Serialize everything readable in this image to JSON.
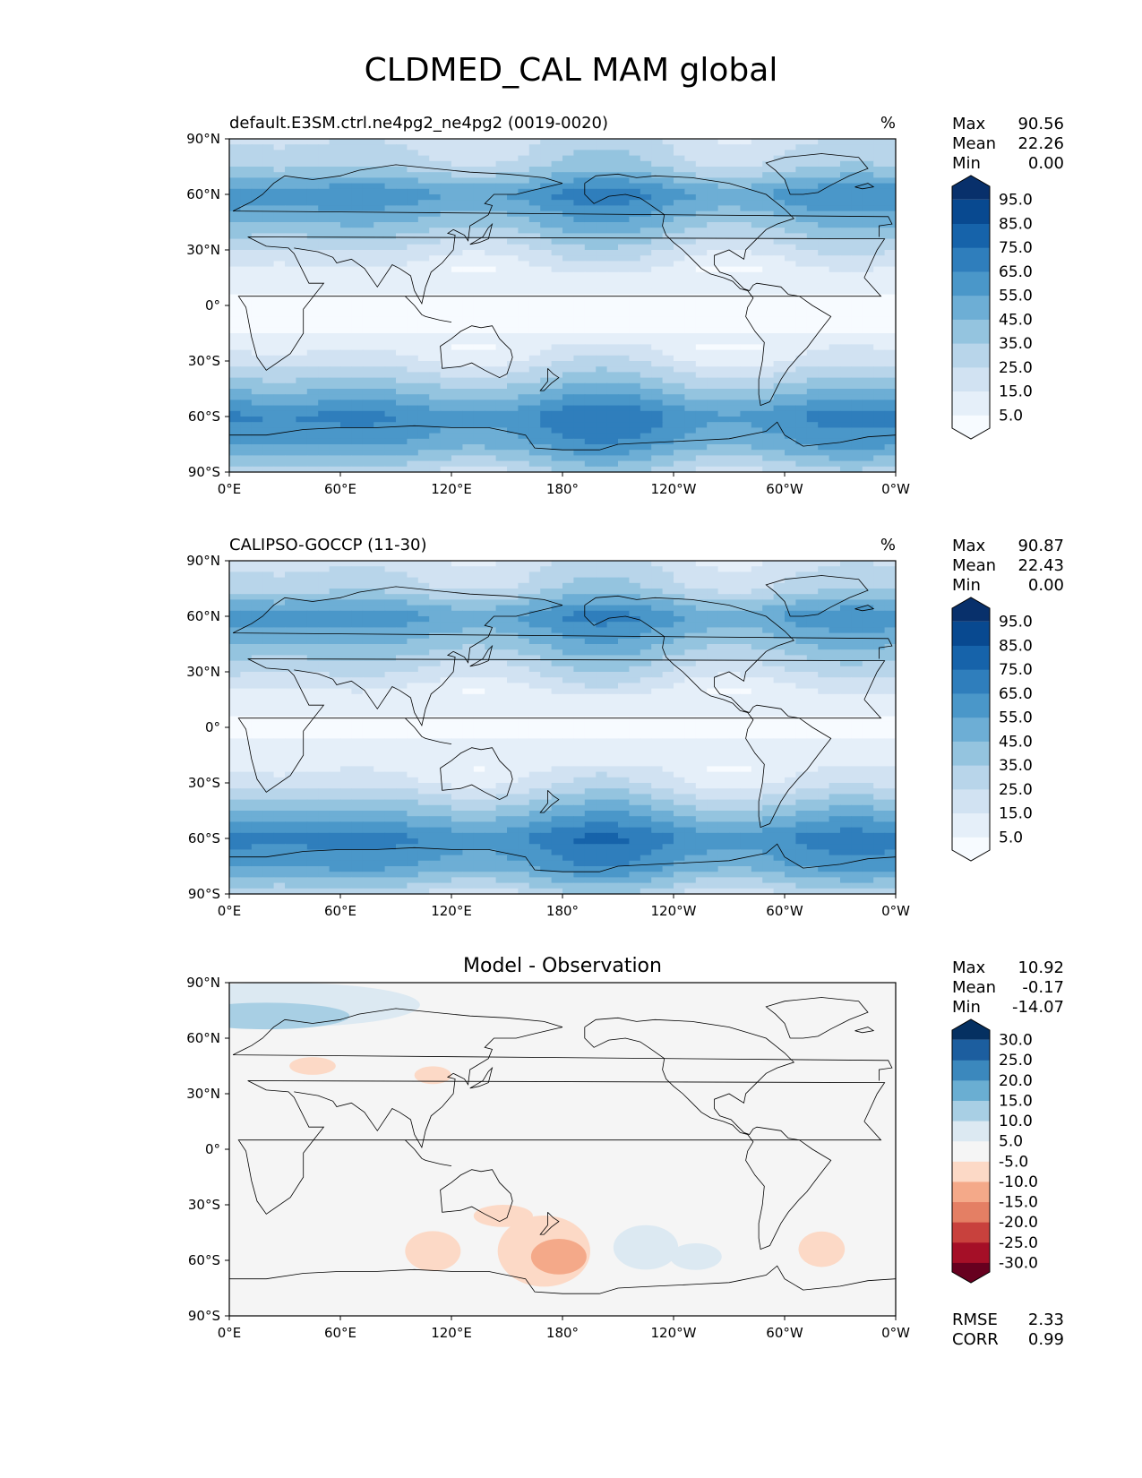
{
  "figure": {
    "title": "CLDMED_CAL MAM global"
  },
  "chart_data": [
    {
      "type": "heatmap",
      "title_left": "default.E3SM.ctrl.ne4pg2_ne4pg2 (0019-0020)",
      "title_center": "",
      "units": "%",
      "x_ticks": [
        "0°E",
        "60°E",
        "120°E",
        "180°",
        "120°W",
        "60°W",
        "0°W"
      ],
      "y_ticks": [
        "90°N",
        "60°N",
        "30°N",
        "0°",
        "30°S",
        "60°S",
        "90°S"
      ],
      "stats": [
        {
          "label": "Max",
          "value": "90.56"
        },
        {
          "label": "Mean",
          "value": "22.26"
        },
        {
          "label": "Min",
          "value": "0.00"
        }
      ],
      "colorbar": {
        "labels": [
          "95.0",
          "85.0",
          "75.0",
          "65.0",
          "55.0",
          "45.0",
          "35.0",
          "25.0",
          "15.0",
          "5.0"
        ],
        "colors": [
          "#f7fbff",
          "#e5eff9",
          "#d1e2f2",
          "#b8d5ea",
          "#94c4df",
          "#6daed5",
          "#4a97c9",
          "#2f7ebc",
          "#1663aa",
          "#084990",
          "#08306b"
        ]
      },
      "latitudes": [
        90,
        75,
        60,
        45,
        30,
        15,
        0,
        -15,
        -30,
        -45,
        -60,
        -75,
        -90
      ],
      "field_by_lat": [
        22,
        32,
        62,
        45,
        24,
        6,
        4,
        5,
        18,
        42,
        66,
        55,
        28
      ]
    },
    {
      "type": "heatmap",
      "title_left": "CALIPSO-GOCCP (11-30)",
      "title_center": "",
      "units": "%",
      "x_ticks": [
        "0°E",
        "60°E",
        "120°E",
        "180°",
        "120°W",
        "60°W",
        "0°W"
      ],
      "y_ticks": [
        "90°N",
        "60°N",
        "30°N",
        "0°",
        "30°S",
        "60°S",
        "90°S"
      ],
      "stats": [
        {
          "label": "Max",
          "value": "90.87"
        },
        {
          "label": "Mean",
          "value": "22.43"
        },
        {
          "label": "Min",
          "value": "0.00"
        }
      ],
      "colorbar": {
        "labels": [
          "95.0",
          "85.0",
          "75.0",
          "65.0",
          "55.0",
          "45.0",
          "35.0",
          "25.0",
          "15.0",
          "5.0"
        ],
        "colors": [
          "#f7fbff",
          "#e5eff9",
          "#d1e2f2",
          "#b8d5ea",
          "#94c4df",
          "#6daed5",
          "#4a97c9",
          "#2f7ebc",
          "#1663aa",
          "#084990",
          "#08306b"
        ]
      },
      "latitudes": [
        90,
        75,
        60,
        45,
        30,
        15,
        0,
        -15,
        -30,
        -45,
        -60,
        -75,
        -90
      ],
      "field_by_lat": [
        20,
        30,
        60,
        44,
        25,
        7,
        4,
        6,
        19,
        44,
        68,
        56,
        26
      ]
    },
    {
      "type": "heatmap",
      "title_left": "",
      "title_center": "Model - Observation",
      "units": "",
      "x_ticks": [
        "0°E",
        "60°E",
        "120°E",
        "180°",
        "120°W",
        "60°W",
        "0°W"
      ],
      "y_ticks": [
        "90°N",
        "60°N",
        "30°N",
        "0°",
        "30°S",
        "60°S",
        "90°S"
      ],
      "stats": [
        {
          "label": "Max",
          "value": "10.92"
        },
        {
          "label": "Mean",
          "value": "-0.17"
        },
        {
          "label": "Min",
          "value": "-14.07"
        }
      ],
      "colorbar": {
        "labels": [
          "30.0",
          "25.0",
          "20.0",
          "15.0",
          "10.0",
          "5.0",
          "-5.0",
          "-10.0",
          "-15.0",
          "-20.0",
          "-25.0",
          "-30.0"
        ],
        "colors": [
          "#67001f",
          "#a50f27",
          "#c8413d",
          "#e47f64",
          "#f4a989",
          "#fcd9c6",
          "#f5f5f5",
          "#dce9f2",
          "#a8cfe4",
          "#6aaed2",
          "#3b88bd",
          "#1c5e9f",
          "#053061"
        ]
      },
      "bottom_stats": [
        {
          "label": "RMSE",
          "value": "2.33"
        },
        {
          "label": "CORR",
          "value": "0.99"
        }
      ]
    }
  ]
}
